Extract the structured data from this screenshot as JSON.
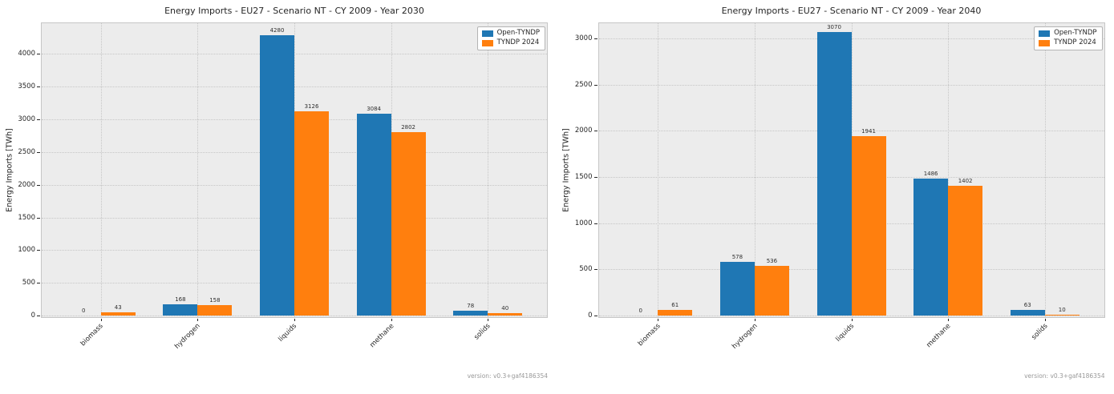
{
  "page": {
    "background": "#ffffff"
  },
  "version_label": "version: v0.3+gaf4186354",
  "colors": {
    "open_tyndp": "#1f77b4",
    "tyndp_2024": "#ff7f0e",
    "plot_bg": "#ececec",
    "grid": "#c6c6c6",
    "text": "#262626",
    "version_text": "#999999"
  },
  "legend": {
    "entries": [
      {
        "label": "Open-TYNDP",
        "color": "#1f77b4"
      },
      {
        "label": "TYNDP 2024",
        "color": "#ff7f0e"
      }
    ]
  },
  "chart_data": [
    {
      "type": "bar",
      "title": "Energy Imports - EU27 - Scenario NT - CY 2009 - Year 2030",
      "xlabel": "",
      "ylabel": "Energy Imports [TWh]",
      "categories": [
        "biomass",
        "hydrogen",
        "liquids",
        "methane",
        "solids"
      ],
      "series": [
        {
          "name": "Open-TYNDP",
          "color": "#1f77b4",
          "values": [
            0,
            168,
            4280,
            3084,
            78
          ]
        },
        {
          "name": "TYNDP 2024",
          "color": "#ff7f0e",
          "values": [
            43,
            158,
            3126,
            2802,
            40
          ]
        }
      ],
      "yticks": [
        0,
        500,
        1000,
        1500,
        2000,
        2500,
        3000,
        3500,
        4000
      ],
      "ylim": [
        0,
        4482
      ],
      "grid": true,
      "legend_position": "upper right",
      "value_labels": true
    },
    {
      "type": "bar",
      "title": "Energy Imports - EU27 - Scenario NT - CY 2009 - Year 2040",
      "xlabel": "",
      "ylabel": "Energy Imports [TWh]",
      "categories": [
        "biomass",
        "hydrogen",
        "liquids",
        "methane",
        "solids"
      ],
      "series": [
        {
          "name": "Open-TYNDP",
          "color": "#1f77b4",
          "values": [
            0,
            578,
            3070,
            1486,
            63
          ]
        },
        {
          "name": "TYNDP 2024",
          "color": "#ff7f0e",
          "values": [
            61,
            536,
            1941,
            1402,
            10
          ]
        }
      ],
      "yticks": [
        0,
        500,
        1000,
        1500,
        2000,
        2500,
        3000
      ],
      "ylim": [
        0,
        3175
      ],
      "grid": true,
      "legend_position": "upper right",
      "value_labels": true
    }
  ]
}
